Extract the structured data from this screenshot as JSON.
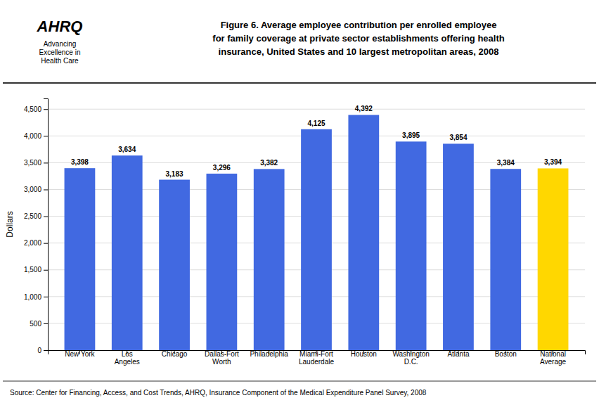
{
  "chart_data": {
    "type": "bar",
    "title": "Figure 6. Average employee contribution per enrolled employee\nfor family coverage at private sector establishments offering health\ninsurance, United States and 10 largest metropolitan areas, 2008",
    "y_label": "Dollars",
    "annotations": [
      "Source: Center for Financing, Access, and Cost Trends, AHRQ, Insurance Component of the Medical Expenditure Panel Survey, 2008",
      "AHRQ",
      "Advancing\nExcellence in\nHealth Care"
    ],
    "categories": [
      "New York",
      "Los\nAngeles",
      "Chicago",
      "Dallas-Fort\nWorth",
      "Philadelphia",
      "Miami-Fort\nLauderdale",
      "Houston",
      "Washington\nD.C.",
      "Atlanta",
      "Boston",
      "National\nAverage"
    ],
    "values": [
      3398,
      3634,
      3183,
      3296,
      3382,
      4125,
      4392,
      3895,
      3854,
      3384,
      3394
    ],
    "value_labels": [
      "3,398",
      "3,634",
      "3,183",
      "3,296",
      "3,382",
      "4,125",
      "4,392",
      "3,895",
      "3,854",
      "3,384",
      "3,394"
    ],
    "colors": [
      "#4169E1",
      "#4169E1",
      "#4169E1",
      "#4169E1",
      "#4169E1",
      "#4169E1",
      "#4169E1",
      "#4169E1",
      "#4169E1",
      "#4169E1",
      "#FFD700"
    ],
    "ylim": [
      0,
      4700
    ],
    "yticks": [
      0,
      500,
      {
        "value": 1000,
        "label": "1,000"
      },
      {
        "value": 1500,
        "label": "1,500"
      },
      {
        "value": 2000,
        "label": "2,000"
      },
      {
        "value": 2500,
        "label": "2,500"
      },
      {
        "value": 3000,
        "label": "3,000"
      },
      {
        "value": 3500,
        "label": "3,500"
      },
      {
        "value": 4000,
        "label": "4,000"
      },
      {
        "value": 4500,
        "label": "4,500"
      }
    ],
    "grid": true,
    "data_labels": true
  }
}
